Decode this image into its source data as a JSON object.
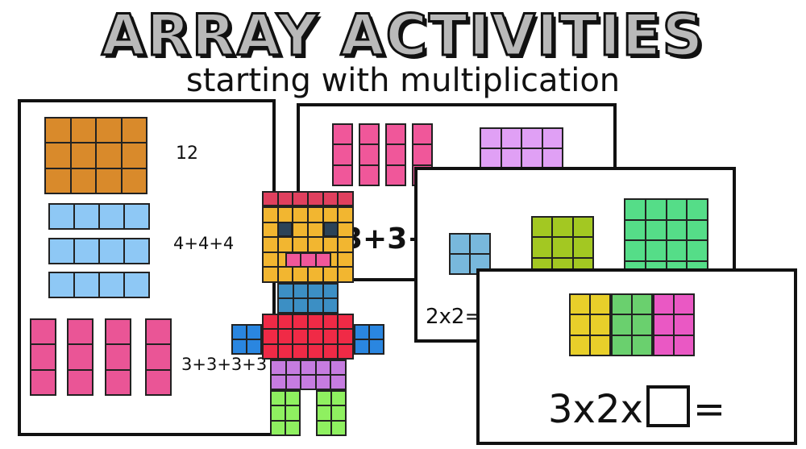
{
  "header": {
    "title": "ARRAY ACTIVITIES",
    "subtitle": "starting with multiplication"
  },
  "cards": [
    {
      "id": "card-1",
      "arrays": [
        {
          "id": "c1a1",
          "rows": 3,
          "cols": 4,
          "color": "#d98a2b"
        },
        {
          "id": "c1a2",
          "rows": 1,
          "cols": 4,
          "color": "#8ec8f5"
        },
        {
          "id": "c1a3",
          "rows": 1,
          "cols": 4,
          "color": "#8ec8f5"
        },
        {
          "id": "c1a4",
          "rows": 1,
          "cols": 4,
          "color": "#8ec8f5"
        },
        {
          "id": "c1a5",
          "rows": 3,
          "cols": 1,
          "color": "#ea5596"
        },
        {
          "id": "c1a6",
          "rows": 3,
          "cols": 1,
          "color": "#ea5596"
        },
        {
          "id": "c1a7",
          "rows": 3,
          "cols": 1,
          "color": "#ea5596"
        },
        {
          "id": "c1a8",
          "rows": 3,
          "cols": 1,
          "color": "#ea5596"
        }
      ],
      "labels": [
        "12",
        "4+4+4",
        "3+3+3+3"
      ]
    },
    {
      "id": "card-2",
      "arrays": [
        {
          "id": "c2a1",
          "rows": 3,
          "cols": 1,
          "color": "#f0579a"
        },
        {
          "id": "c2a2",
          "rows": 3,
          "cols": 1,
          "color": "#f0579a"
        },
        {
          "id": "c2a3",
          "rows": 3,
          "cols": 1,
          "color": "#f0579a"
        },
        {
          "id": "c2a4",
          "rows": 3,
          "cols": 1,
          "color": "#f0579a"
        },
        {
          "id": "c2a5",
          "rows": 2,
          "cols": 4,
          "color": "#e0a0f5"
        }
      ],
      "labels": [
        "3+3+"
      ]
    },
    {
      "id": "card-3",
      "arrays": [
        {
          "id": "c3a1",
          "rows": 2,
          "cols": 2,
          "color": "#78b8dc"
        },
        {
          "id": "c3a2",
          "rows": 3,
          "cols": 3,
          "color": "#a3c822"
        },
        {
          "id": "c3a3",
          "rows": 4,
          "cols": 4,
          "color": "#55dd88"
        }
      ],
      "labels": [
        "2x2="
      ]
    },
    {
      "id": "card-4",
      "arrays": [
        {
          "id": "c4a1",
          "rows": 3,
          "cols": 2,
          "color": "#e8cf2a"
        },
        {
          "id": "c4a2",
          "rows": 3,
          "cols": 2,
          "color": "#6ad06e"
        },
        {
          "id": "c4a3",
          "rows": 3,
          "cols": 2,
          "color": "#ea58c4"
        }
      ],
      "equation": {
        "left": "3x2x",
        "right": "="
      }
    }
  ],
  "robot": {
    "colors": {
      "hair": "#e0405e",
      "head": "#f2b630",
      "eyes": "#2c4358",
      "mouth": "#f0579a",
      "neck": "#3c8fc4",
      "body": "#f02a46",
      "arms": "#2a86e0",
      "pants": "#c67ce0",
      "legs": "#8ff060"
    }
  }
}
